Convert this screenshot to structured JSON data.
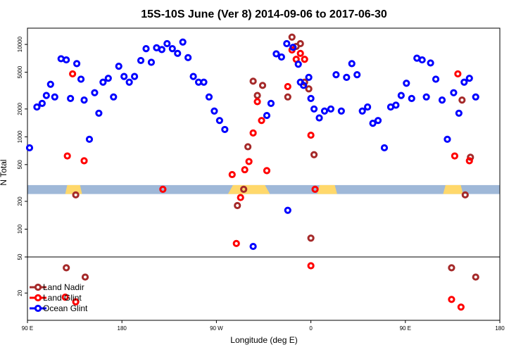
{
  "chart_data": {
    "type": "scatter",
    "title": "15S-10S June (Ver 8)   2014-09-06 to 2017-06-30",
    "xlabel": "Longitude (deg E)",
    "ylabel": "N Total",
    "x_ticks": [
      {
        "x": 90,
        "label": "90 E"
      },
      {
        "x": 180,
        "label": "180"
      },
      {
        "x": 270,
        "label": "90 W"
      },
      {
        "x": 360,
        "label": "0"
      },
      {
        "x": 450,
        "label": "90 E"
      },
      {
        "x": 540,
        "label": "180"
      }
    ],
    "xlim": [
      90,
      540
    ],
    "y_upper_ticks": [
      {
        "y": 100,
        "label": "100"
      },
      {
        "y": 200,
        "label": "200"
      },
      {
        "y": 500,
        "label": "500"
      },
      {
        "y": 1000,
        "label": "1000"
      },
      {
        "y": 2000,
        "label": "2000"
      },
      {
        "y": 5000,
        "label": "5000"
      },
      {
        "y": 10000,
        "label": "10000"
      }
    ],
    "y_lower_ticks": [
      {
        "y": 20,
        "label": "20"
      },
      {
        "y": 50,
        "label": "50"
      }
    ],
    "ylim_upper": [
      50,
      15000
    ],
    "ylim_lower": [
      10,
      50
    ],
    "y_scale": "log",
    "legend_position": "bottom-left",
    "series": [
      {
        "name": "Land Nadir",
        "color": "#a52a2a",
        "points": [
          [
            127,
            38
          ],
          [
            136,
            235
          ],
          [
            145,
            30
          ],
          [
            290,
            180
          ],
          [
            296,
            270
          ],
          [
            300,
            780
          ],
          [
            305,
            4000
          ],
          [
            309,
            2800
          ],
          [
            314,
            3600
          ],
          [
            338,
            2700
          ],
          [
            342,
            12000
          ],
          [
            346,
            9500
          ],
          [
            350,
            10200
          ],
          [
            354,
            3900
          ],
          [
            358,
            3300
          ],
          [
            360,
            80
          ],
          [
            363,
            640
          ],
          [
            494,
            38
          ],
          [
            504,
            2500
          ],
          [
            507,
            235
          ],
          [
            512,
            600
          ],
          [
            517,
            30
          ]
        ]
      },
      {
        "name": "Land Glint",
        "color": "#ff0000",
        "points": [
          [
            126,
            18
          ],
          [
            128,
            620
          ],
          [
            133,
            4800
          ],
          [
            136,
            16
          ],
          [
            144,
            550
          ],
          [
            219,
            270
          ],
          [
            285,
            390
          ],
          [
            289,
            70
          ],
          [
            293,
            220
          ],
          [
            297,
            440
          ],
          [
            301,
            540
          ],
          [
            305,
            1100
          ],
          [
            309,
            2400
          ],
          [
            313,
            1500
          ],
          [
            318,
            430
          ],
          [
            338,
            3500
          ],
          [
            342,
            8700
          ],
          [
            346,
            6900
          ],
          [
            350,
            8000
          ],
          [
            354,
            6900
          ],
          [
            360,
            1040
          ],
          [
            360,
            40
          ],
          [
            364,
            270
          ],
          [
            494,
            17
          ],
          [
            497,
            620
          ],
          [
            500,
            4800
          ],
          [
            503,
            14
          ],
          [
            511,
            550
          ]
        ]
      },
      {
        "name": "Ocean Glint",
        "color": "#0000ff",
        "points": [
          [
            92,
            760
          ],
          [
            99,
            2100
          ],
          [
            104,
            2300
          ],
          [
            108,
            2800
          ],
          [
            112,
            3700
          ],
          [
            116,
            2700
          ],
          [
            122,
            7000
          ],
          [
            127,
            6800
          ],
          [
            131,
            2600
          ],
          [
            137,
            6200
          ],
          [
            141,
            4200
          ],
          [
            144,
            2500
          ],
          [
            149,
            940
          ],
          [
            154,
            3000
          ],
          [
            158,
            1800
          ],
          [
            162,
            3900
          ],
          [
            167,
            4300
          ],
          [
            172,
            2700
          ],
          [
            177,
            5800
          ],
          [
            182,
            4500
          ],
          [
            187,
            3900
          ],
          [
            192,
            4500
          ],
          [
            198,
            6700
          ],
          [
            203,
            9000
          ],
          [
            208,
            6400
          ],
          [
            213,
            9200
          ],
          [
            218,
            8800
          ],
          [
            223,
            10200
          ],
          [
            228,
            9000
          ],
          [
            233,
            8000
          ],
          [
            238,
            10600
          ],
          [
            243,
            7200
          ],
          [
            248,
            4500
          ],
          [
            253,
            3900
          ],
          [
            258,
            3900
          ],
          [
            263,
            2700
          ],
          [
            268,
            1900
          ],
          [
            273,
            1500
          ],
          [
            278,
            1200
          ],
          [
            318,
            1700
          ],
          [
            322,
            2300
          ],
          [
            327,
            7900
          ],
          [
            332,
            7300
          ],
          [
            337,
            10200
          ],
          [
            343,
            9300
          ],
          [
            348,
            6100
          ],
          [
            353,
            3600
          ],
          [
            358,
            4400
          ],
          [
            363,
            2000
          ],
          [
            368,
            1600
          ],
          [
            373,
            1900
          ],
          [
            338,
            160
          ],
          [
            350,
            3900
          ],
          [
            360,
            2600
          ],
          [
            379,
            2000
          ],
          [
            384,
            4700
          ],
          [
            389,
            1900
          ],
          [
            394,
            4400
          ],
          [
            399,
            6200
          ],
          [
            404,
            4700
          ],
          [
            409,
            1900
          ],
          [
            414,
            2100
          ],
          [
            419,
            1400
          ],
          [
            424,
            1500
          ],
          [
            430,
            760
          ],
          [
            436,
            2100
          ],
          [
            441,
            2200
          ],
          [
            446,
            2800
          ],
          [
            451,
            3800
          ],
          [
            456,
            2600
          ],
          [
            461,
            7100
          ],
          [
            466,
            6800
          ],
          [
            470,
            2700
          ],
          [
            474,
            6300
          ],
          [
            479,
            4200
          ],
          [
            485,
            2500
          ],
          [
            490,
            940
          ],
          [
            496,
            3000
          ],
          [
            501,
            1800
          ],
          [
            506,
            3900
          ],
          [
            511,
            4300
          ],
          [
            517,
            2700
          ],
          [
            305,
            65
          ]
        ]
      }
    ],
    "ocean_band": {
      "y_low": 240,
      "y_high": 300,
      "color": "#9fb8d8"
    },
    "land_band": {
      "color": "#ffd86b",
      "x_ranges": [
        [
          126,
          142
        ],
        [
          281,
          321
        ],
        [
          366,
          385
        ],
        [
          486,
          505
        ]
      ]
    }
  }
}
